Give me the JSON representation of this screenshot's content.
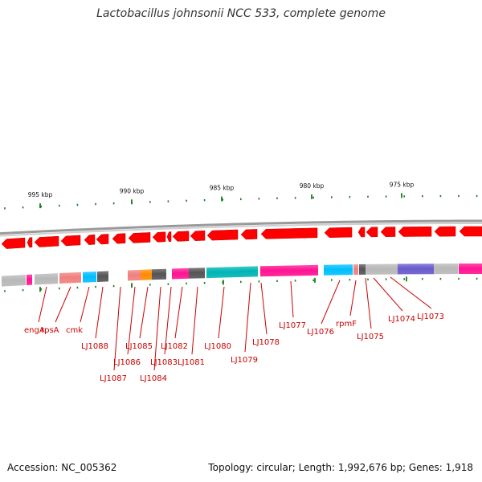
{
  "title": "Lactobacillus johnsonii NCC 533, complete genome",
  "footer": {
    "accession": "Accession: NC_005362",
    "summary": "Topology: circular; Length: 1,992,676 bp; Genes: 1,918"
  },
  "colors": {
    "gene_arrow": "#ff0000",
    "label": "#cc0000",
    "tick": "#1a7a1a",
    "backbone": "#888888"
  },
  "scale_labels": [
    "995 kbp",
    "990 kbp",
    "985 kbp",
    "980 kbp",
    "975 kbp"
  ],
  "gene_labels": [
    "engA",
    "rpsA",
    "cmk",
    "LJ1088",
    "LJ1087",
    "LJ1086",
    "LJ1085",
    "LJ1084",
    "LJ1083",
    "LJ1082",
    "LJ1081",
    "LJ1080",
    "LJ1079",
    "LJ1078",
    "LJ1077",
    "LJ1076",
    "rpmF",
    "LJ1075",
    "LJ1074",
    "LJ1073"
  ]
}
